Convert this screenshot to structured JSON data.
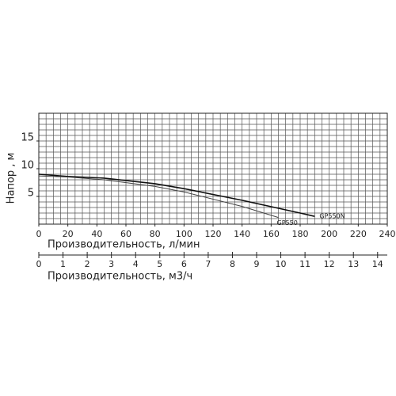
{
  "chart_data": {
    "type": "line",
    "x_label": "Производительность, л/мин",
    "y_label": "Напор , м",
    "xlim": [
      0,
      240
    ],
    "xticks": [
      0,
      20,
      40,
      60,
      80,
      100,
      120,
      140,
      160,
      180,
      200,
      220,
      240
    ],
    "ylim": [
      0,
      20
    ],
    "yticks": [
      5,
      10,
      15
    ],
    "grid": true,
    "grid_step": {
      "x": 5,
      "y": 1
    },
    "x2_label": "Производительность, м3/ч",
    "x2lim": [
      0,
      14.4
    ],
    "x2ticks": [
      0,
      1,
      2,
      3,
      4,
      5,
      6,
      7,
      8,
      9,
      10,
      11,
      12,
      13,
      14
    ],
    "series": [
      {
        "name": "GP550N",
        "color": "#111111",
        "x": [
          0,
          20,
          45,
          80,
          100,
          140,
          180,
          190
        ],
        "values": [
          9,
          8.6,
          8.3,
          7.3,
          6.4,
          4.3,
          2.0,
          1.4
        ]
      },
      {
        "name": "GP550",
        "color": "#444444",
        "x": [
          0,
          20,
          45,
          80,
          100,
          140,
          165
        ],
        "values": [
          8.7,
          8.5,
          8.0,
          6.8,
          5.8,
          3.2,
          1.2
        ]
      }
    ]
  }
}
